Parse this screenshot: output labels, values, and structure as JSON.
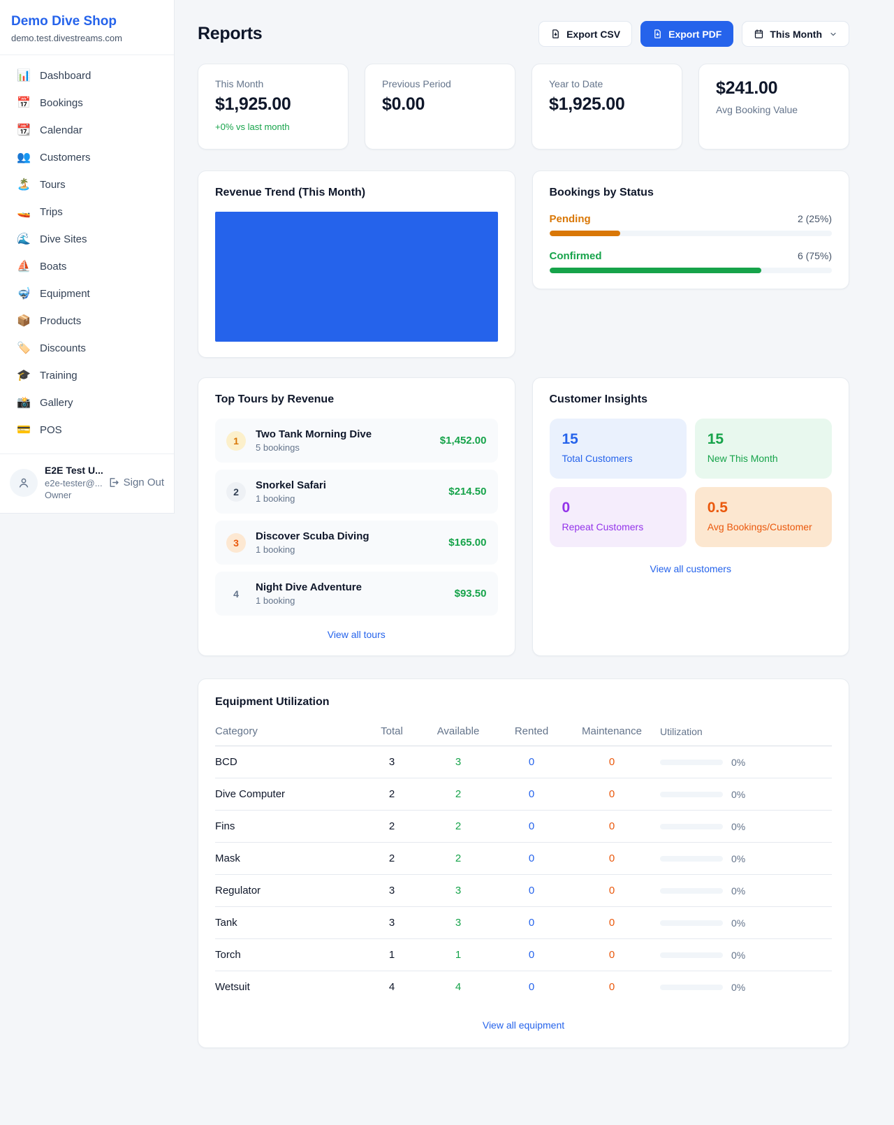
{
  "app": {
    "name": "Demo Dive Shop",
    "subdomain": "demo.test.divestreams.com"
  },
  "colors": {
    "accent_blue": "#2563eb",
    "green": "#16a34a",
    "amber": "#d97706",
    "orange": "#ea580c",
    "purple": "#9333ea",
    "muted": "#64748b"
  },
  "sidebar": {
    "items": [
      {
        "icon": "📊",
        "label": "Dashboard"
      },
      {
        "icon": "📅",
        "label": "Bookings"
      },
      {
        "icon": "📆",
        "label": "Calendar"
      },
      {
        "icon": "👥",
        "label": "Customers"
      },
      {
        "icon": "🏝️",
        "label": "Tours"
      },
      {
        "icon": "🚤",
        "label": "Trips"
      },
      {
        "icon": "🌊",
        "label": "Dive Sites"
      },
      {
        "icon": "⛵",
        "label": "Boats"
      },
      {
        "icon": "🤿",
        "label": "Equipment"
      },
      {
        "icon": "📦",
        "label": "Products"
      },
      {
        "icon": "🏷️",
        "label": "Discounts"
      },
      {
        "icon": "🎓",
        "label": "Training"
      },
      {
        "icon": "📸",
        "label": "Gallery"
      },
      {
        "icon": "💳",
        "label": "POS"
      }
    ],
    "user": {
      "name": "E2E Test U...",
      "email": "e2e-tester@...",
      "role": "Owner",
      "sign_out": "Sign Out"
    }
  },
  "header": {
    "title": "Reports",
    "export_csv": "Export CSV",
    "export_pdf": "Export PDF",
    "period": "This Month"
  },
  "stats": [
    {
      "label": "This Month",
      "value": "$1,925.00",
      "delta": "+0% vs last month"
    },
    {
      "label": "Previous Period",
      "value": "$0.00"
    },
    {
      "label": "Year to Date",
      "value": "$1,925.00"
    },
    {
      "label": "Avg Booking Value",
      "value": "$241.00"
    }
  ],
  "revenue_trend": {
    "title": "Revenue Trend (This Month)"
  },
  "chart_data": {
    "type": "bar",
    "title": "Revenue Trend (This Month)",
    "categories": [
      "This Month"
    ],
    "values": [
      1925
    ],
    "color": "#2563eb",
    "xlabel": "",
    "ylabel": "",
    "notes": "single full-width solid bar, no axes or tick labels visible"
  },
  "bookings_by_status": {
    "title": "Bookings by Status",
    "rows": [
      {
        "label": "Pending",
        "value_text": "2 (25%)",
        "pct": 25
      },
      {
        "label": "Confirmed",
        "value_text": "6 (75%)",
        "pct": 75
      }
    ]
  },
  "top_tours": {
    "title": "Top Tours by Revenue",
    "view_all": "View all tours",
    "items": [
      {
        "rank": "1",
        "name": "Two Tank Morning Dive",
        "bookings": "5 bookings",
        "revenue": "$1,452.00"
      },
      {
        "rank": "2",
        "name": "Snorkel Safari",
        "bookings": "1 booking",
        "revenue": "$214.50"
      },
      {
        "rank": "3",
        "name": "Discover Scuba Diving",
        "bookings": "1 booking",
        "revenue": "$165.00"
      },
      {
        "rank": "4",
        "name": "Night Dive Adventure",
        "bookings": "1 booking",
        "revenue": "$93.50"
      }
    ]
  },
  "customer_insights": {
    "title": "Customer Insights",
    "view_all": "View all customers",
    "tiles": [
      {
        "value": "15",
        "label": "Total Customers"
      },
      {
        "value": "15",
        "label": "New This Month"
      },
      {
        "value": "0",
        "label": "Repeat Customers"
      },
      {
        "value": "0.5",
        "label": "Avg Bookings/Customer"
      }
    ]
  },
  "equipment": {
    "title": "Equipment Utilization",
    "view_all": "View all equipment",
    "columns": [
      "Category",
      "Total",
      "Available",
      "Rented",
      "Maintenance",
      "Utilization"
    ],
    "rows": [
      {
        "category": "BCD",
        "total": "3",
        "available": "3",
        "rented": "0",
        "maintenance": "0",
        "utilization_pct": 0,
        "utilization_text": "0%"
      },
      {
        "category": "Dive Computer",
        "total": "2",
        "available": "2",
        "rented": "0",
        "maintenance": "0",
        "utilization_pct": 0,
        "utilization_text": "0%"
      },
      {
        "category": "Fins",
        "total": "2",
        "available": "2",
        "rented": "0",
        "maintenance": "0",
        "utilization_pct": 0,
        "utilization_text": "0%"
      },
      {
        "category": "Mask",
        "total": "2",
        "available": "2",
        "rented": "0",
        "maintenance": "0",
        "utilization_pct": 0,
        "utilization_text": "0%"
      },
      {
        "category": "Regulator",
        "total": "3",
        "available": "3",
        "rented": "0",
        "maintenance": "0",
        "utilization_pct": 0,
        "utilization_text": "0%"
      },
      {
        "category": "Tank",
        "total": "3",
        "available": "3",
        "rented": "0",
        "maintenance": "0",
        "utilization_pct": 0,
        "utilization_text": "0%"
      },
      {
        "category": "Torch",
        "total": "1",
        "available": "1",
        "rented": "0",
        "maintenance": "0",
        "utilization_pct": 0,
        "utilization_text": "0%"
      },
      {
        "category": "Wetsuit",
        "total": "4",
        "available": "4",
        "rented": "0",
        "maintenance": "0",
        "utilization_pct": 0,
        "utilization_text": "0%"
      }
    ]
  }
}
